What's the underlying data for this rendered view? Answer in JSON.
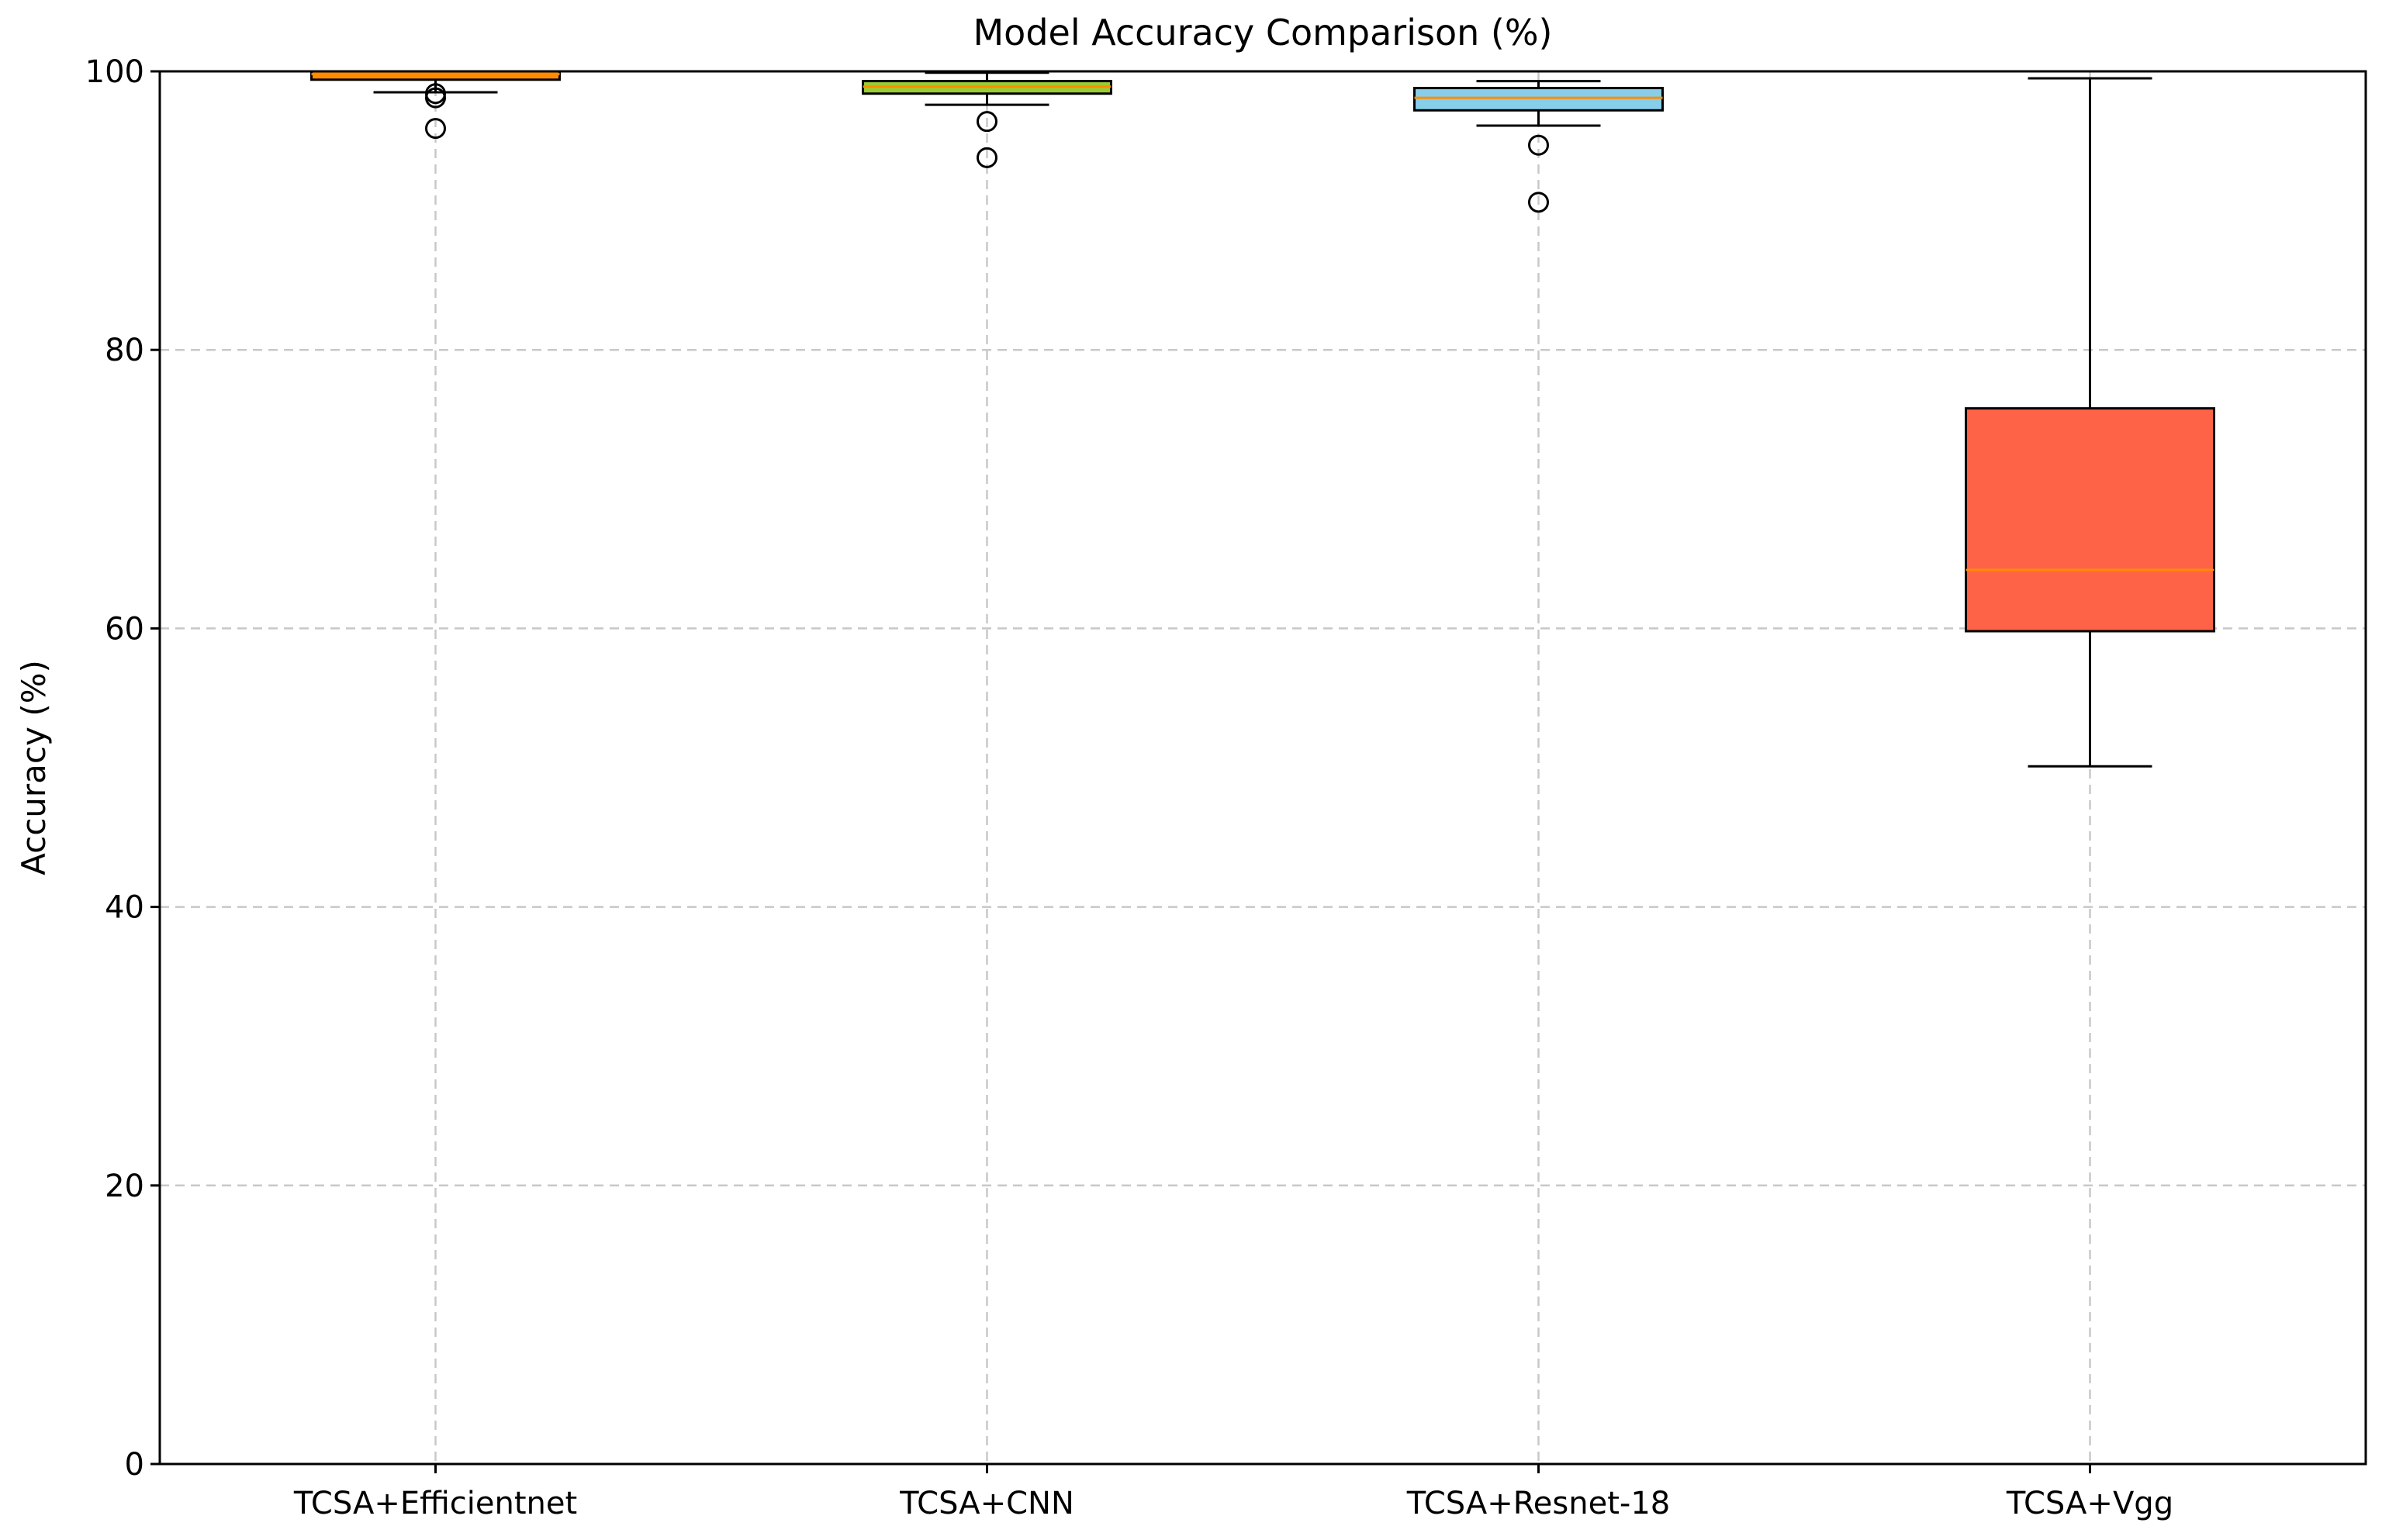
{
  "chart_data": {
    "type": "boxplot",
    "title": "Model Accuracy Comparison (%)",
    "xlabel": "",
    "ylabel": "Accuracy (%)",
    "ylim": [
      0,
      100
    ],
    "yticks": [
      0,
      20,
      40,
      60,
      80,
      100
    ],
    "grid": true,
    "categories": [
      "TCSA+Efficientnet",
      "TCSA+CNN",
      "TCSA+Resnet-18",
      "TCSA+Vgg"
    ],
    "boxes": [
      {
        "category": "TCSA+Efficientnet",
        "whisker_low": 98.5,
        "q1": 99.4,
        "median": 99.8,
        "q3": 100.0,
        "whisker_high": 100.0,
        "outliers": [
          98.4,
          98.1,
          95.9
        ],
        "color": "#ff8c00"
      },
      {
        "category": "TCSA+CNN",
        "whisker_low": 97.6,
        "q1": 98.4,
        "median": 98.9,
        "q3": 99.3,
        "whisker_high": 99.9,
        "outliers": [
          96.4,
          93.8
        ],
        "color": "#9acd32"
      },
      {
        "category": "TCSA+Resnet-18",
        "whisker_low": 96.1,
        "q1": 97.2,
        "median": 98.1,
        "q3": 98.8,
        "whisker_high": 99.3,
        "outliers": [
          94.7,
          90.6
        ],
        "color": "#87ceeb"
      },
      {
        "category": "TCSA+Vgg",
        "whisker_low": 50.1,
        "q1": 59.8,
        "median": 64.2,
        "q3": 75.8,
        "whisker_high": 99.5,
        "outliers": [],
        "color": "#ff6347"
      }
    ],
    "median_color": "#ff8c00"
  }
}
